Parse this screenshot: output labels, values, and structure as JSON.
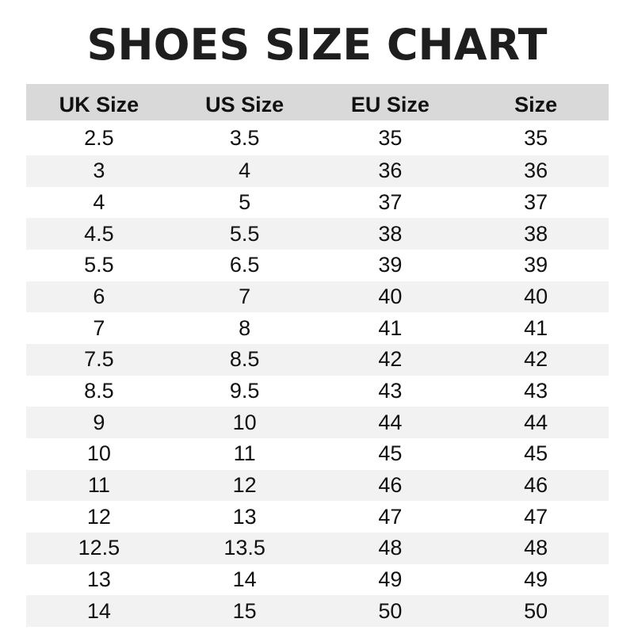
{
  "title": "SHOES SIZE CHART",
  "headers": [
    "UK Size",
    "US Size",
    "EU Size",
    "Size"
  ],
  "rows": [
    [
      "2.5",
      "3.5",
      "35",
      "35"
    ],
    [
      "3",
      "4",
      "36",
      "36"
    ],
    [
      "4",
      "5",
      "37",
      "37"
    ],
    [
      "4.5",
      "5.5",
      "38",
      "38"
    ],
    [
      "5.5",
      "6.5",
      "39",
      "39"
    ],
    [
      "6",
      "7",
      "40",
      "40"
    ],
    [
      "7",
      "8",
      "41",
      "41"
    ],
    [
      "7.5",
      "8.5",
      "42",
      "42"
    ],
    [
      "8.5",
      "9.5",
      "43",
      "43"
    ],
    [
      "9",
      "10",
      "44",
      "44"
    ],
    [
      "10",
      "11",
      "45",
      "45"
    ],
    [
      "11",
      "12",
      "46",
      "46"
    ],
    [
      "12",
      "13",
      "47",
      "47"
    ],
    [
      "12.5",
      "13.5",
      "48",
      "48"
    ],
    [
      "13",
      "14",
      "49",
      "49"
    ],
    [
      "14",
      "15",
      "50",
      "50"
    ]
  ],
  "colors": {
    "header_bg": "#d9d9d9",
    "stripe_bg": "#f2f2f2",
    "text": "#111111"
  }
}
